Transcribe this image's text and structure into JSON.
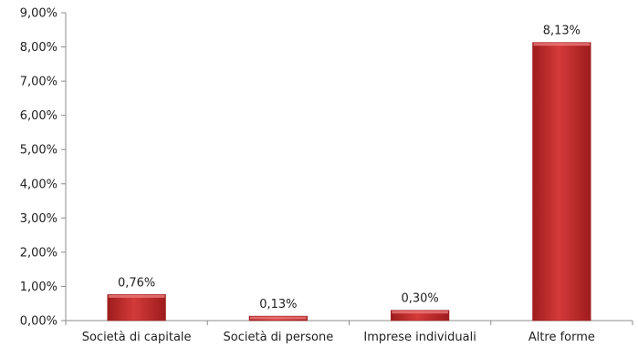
{
  "chart_data": {
    "type": "bar",
    "categories": [
      "Società di capitale",
      "Società di persone",
      "Imprese individuali",
      "Altre forme"
    ],
    "values": [
      0.76,
      0.13,
      0.3,
      8.13
    ],
    "data_labels": [
      "0,76%",
      "0,13%",
      "0,30%",
      "8,13%"
    ],
    "title": "",
    "xlabel": "",
    "ylabel": "",
    "ylim": [
      0,
      9
    ],
    "yticks": [
      0,
      1,
      2,
      3,
      4,
      5,
      6,
      7,
      8,
      9
    ],
    "ytick_labels": [
      "0,00%",
      "1,00%",
      "2,00%",
      "3,00%",
      "4,00%",
      "5,00%",
      "6,00%",
      "7,00%",
      "8,00%",
      "9,00%"
    ],
    "grid": false,
    "legend": "none",
    "bar_color": "#d43a3a",
    "bar_color_dark": "#9e1c1c"
  }
}
